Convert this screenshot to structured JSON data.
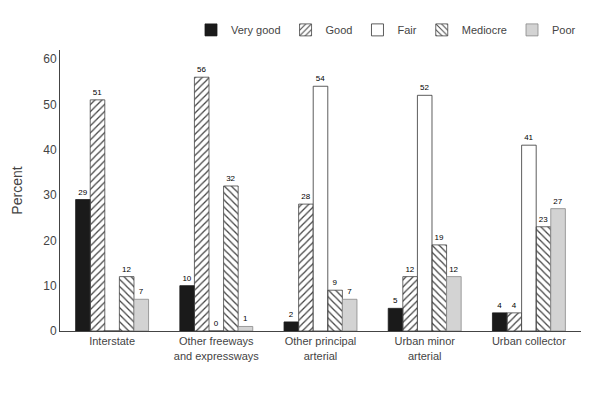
{
  "chart_data": {
    "type": "bar",
    "categories": [
      "Interstate",
      "Other freeways\nand expressways",
      "Other principal\narterial",
      "Urban minor\narterial",
      "Urban collector"
    ],
    "series": [
      {
        "name": "Very good",
        "color": "#1a1a1a",
        "values": [
          29,
          10,
          2,
          5,
          4
        ]
      },
      {
        "name": "Good",
        "color": "#ffffff",
        "values": [
          51,
          56,
          28,
          12,
          4
        ]
      },
      {
        "name": "Fair",
        "color": "#ffffff",
        "values": [
          0,
          0,
          54,
          52,
          41
        ],
        "value_labels": [
          null,
          "0",
          "54",
          "52",
          "41"
        ]
      },
      {
        "name": "Mediocre",
        "color": "#d3d3d3",
        "values": [
          12,
          32,
          9,
          19,
          23
        ]
      },
      {
        "name": "Poor",
        "color": "#d3d3d3",
        "values": [
          7,
          1,
          7,
          12,
          27
        ]
      }
    ],
    "ylabel": "Percent",
    "ylim": [
      0,
      62
    ],
    "yticks": [
      0,
      10,
      20,
      30,
      40,
      50,
      60
    ],
    "grid": false,
    "legend": "top right",
    "data_labels": true
  }
}
